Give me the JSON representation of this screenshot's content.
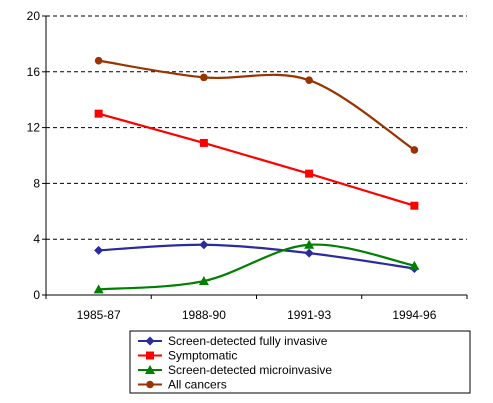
{
  "chart_data": {
    "type": "line",
    "categories": [
      "1985-87",
      "1988-90",
      "1991-93",
      "1994-96"
    ],
    "ylim": [
      0,
      20
    ],
    "yticks": [
      0,
      4,
      8,
      12,
      16,
      20
    ],
    "grid": "horizontal dashed",
    "legend_position": "bottom",
    "series": [
      {
        "name": "Screen-detected fully invasive",
        "values": [
          3.2,
          3.6,
          3.0,
          1.9
        ],
        "color": "#2B2B9E",
        "marker": "diamond"
      },
      {
        "name": "Symptomatic",
        "values": [
          13.0,
          10.9,
          8.7,
          6.4
        ],
        "color": "#FF0000",
        "marker": "square"
      },
      {
        "name": "Screen-detected microinvasive",
        "values": [
          0.4,
          1.0,
          3.6,
          2.1
        ],
        "color": "#008000",
        "marker": "triangle"
      },
      {
        "name": "All cancers",
        "values": [
          16.8,
          15.6,
          15.4,
          10.4
        ],
        "color": "#993300",
        "marker": "circle"
      }
    ]
  }
}
